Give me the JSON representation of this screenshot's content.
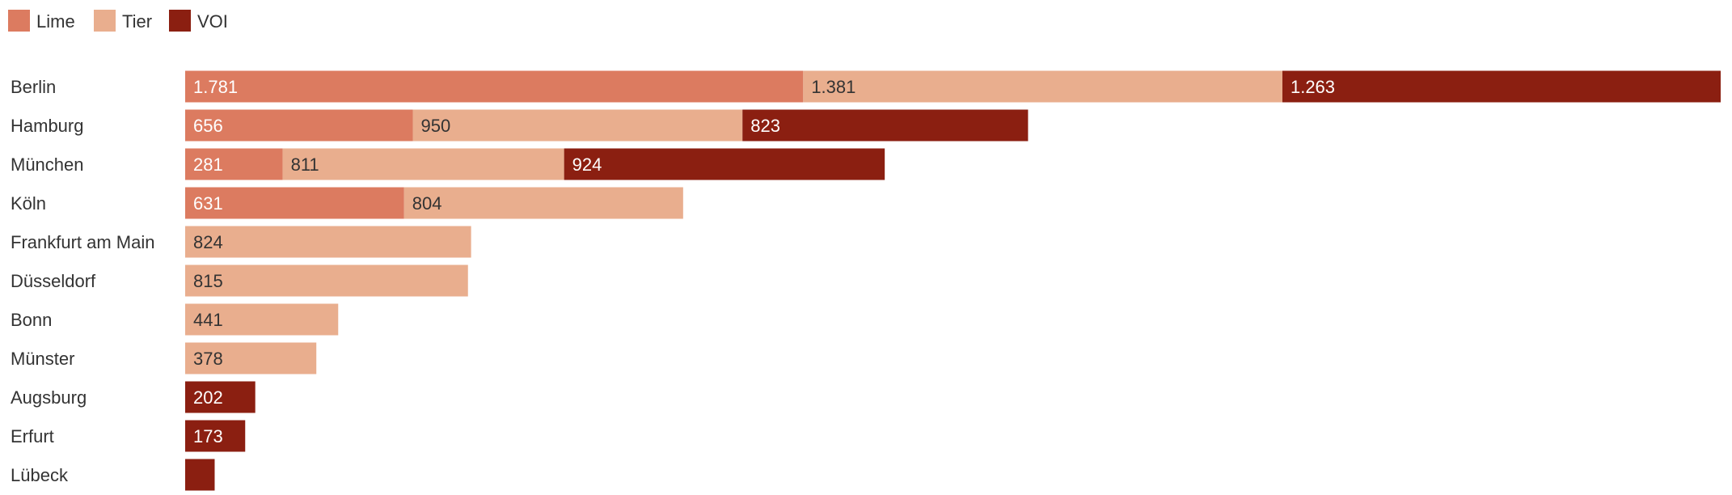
{
  "chart_data": {
    "type": "bar",
    "orientation": "horizontal",
    "stacked": true,
    "title": "",
    "xlabel": "",
    "ylabel": "",
    "xlim": [
      0,
      4425
    ],
    "grid": false,
    "legend_position": "top-left",
    "categories": [
      "Berlin",
      "Hamburg",
      "München",
      "Köln",
      "Frankfurt am Main",
      "Düsseldorf",
      "Bonn",
      "Münster",
      "Augsburg",
      "Erfurt",
      "Lübeck"
    ],
    "series": [
      {
        "name": "Lime",
        "color": "#dc7b60",
        "label_color": "#ffffff",
        "values": [
          1781,
          656,
          281,
          631,
          null,
          null,
          null,
          null,
          null,
          null,
          null
        ],
        "labels": [
          "1.781",
          "656",
          "281",
          "631",
          "",
          "",
          "",
          "",
          "",
          "",
          ""
        ]
      },
      {
        "name": "Tier",
        "color": "#e9ae8e",
        "label_color": "#333333",
        "values": [
          1381,
          950,
          811,
          804,
          824,
          815,
          441,
          378,
          null,
          null,
          null
        ],
        "labels": [
          "1.381",
          "950",
          "811",
          "804",
          "824",
          "815",
          "441",
          "378",
          "",
          "",
          ""
        ]
      },
      {
        "name": "VOI",
        "color": "#8b1f11",
        "label_color": "#ffffff",
        "values": [
          1263,
          823,
          924,
          null,
          null,
          null,
          null,
          null,
          202,
          173,
          85
        ],
        "labels": [
          "1.263",
          "823",
          "924",
          "",
          "",
          "",
          "",
          "",
          "202",
          "173",
          ""
        ]
      }
    ]
  }
}
